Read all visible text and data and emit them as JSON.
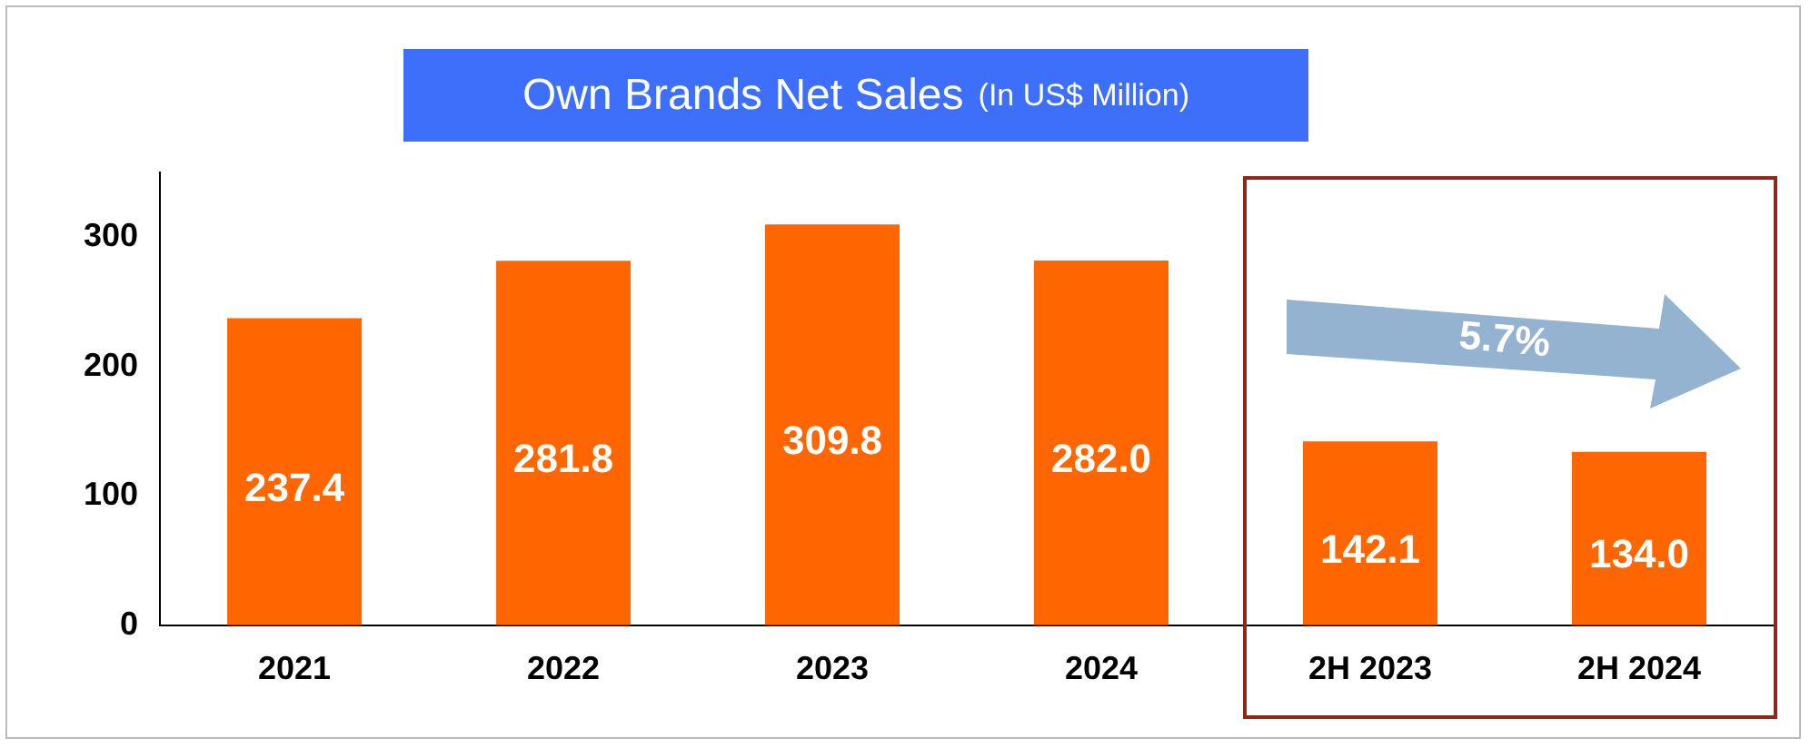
{
  "chart_data": {
    "type": "bar",
    "title": "Own Brands Net Sales",
    "subtitle": "(In US$ Million)",
    "categories": [
      "2021",
      "2022",
      "2023",
      "2024",
      "2H 2023",
      "2H 2024"
    ],
    "values": [
      237.4,
      281.8,
      309.8,
      282.0,
      142.1,
      134.0
    ],
    "color": "#ff6600",
    "ylim": [
      0,
      350
    ],
    "yticks": [
      0,
      100,
      200,
      300
    ],
    "value_labels": [
      "237.4",
      "281.8",
      "309.8",
      "282.0",
      "142.1",
      "134.0"
    ],
    "grid": false,
    "legend": false,
    "annotations": [
      "5.7%"
    ]
  }
}
